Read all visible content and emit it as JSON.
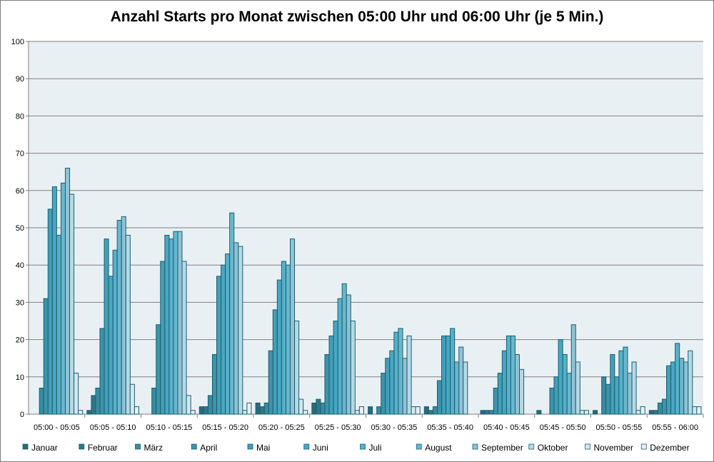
{
  "chart_data": {
    "type": "bar",
    "title": "Anzahl Starts pro Monat zwischen 05:00 Uhr und 06:00 Uhr (je 5 Min.)",
    "xlabel": "",
    "ylabel": "",
    "ylim": [
      0,
      100
    ],
    "yticks": [
      0,
      10,
      20,
      30,
      40,
      50,
      60,
      70,
      80,
      90,
      100
    ],
    "grid": true,
    "legend": "bottom",
    "categories": [
      "05:00 - 05:05",
      "05:05 - 05:10",
      "05:10 - 05:15",
      "05:15 - 05:20",
      "05:20 - 05:25",
      "05:25 - 05:30",
      "05:30 - 05:35",
      "05:35 - 05:40",
      "05:40 - 05:45",
      "05:45 - 05:50",
      "05:50 - 05:55",
      "05:55 - 06:00"
    ],
    "series": [
      {
        "name": "Januar",
        "color": "#2b6a7a",
        "values": [
          0,
          1,
          0,
          2,
          3,
          3,
          2,
          2,
          1,
          1,
          1,
          1
        ]
      },
      {
        "name": "Februar",
        "color": "#2e7889",
        "values": [
          0,
          5,
          0,
          2,
          2,
          4,
          0,
          1,
          1,
          0,
          0,
          1
        ]
      },
      {
        "name": "März",
        "color": "#3a8b9f",
        "values": [
          7,
          7,
          7,
          5,
          3,
          3,
          2,
          2,
          1,
          0,
          10,
          3
        ]
      },
      {
        "name": "April",
        "color": "#3c94aa",
        "values": [
          31,
          23,
          24,
          16,
          17,
          16,
          11,
          9,
          7,
          7,
          8,
          4
        ]
      },
      {
        "name": "Mai",
        "color": "#439fb8",
        "values": [
          55,
          47,
          41,
          37,
          28,
          21,
          15,
          21,
          11,
          10,
          16,
          13
        ]
      },
      {
        "name": "Juni",
        "color": "#48a7c2",
        "values": [
          61,
          37,
          48,
          40,
          36,
          25,
          17,
          21,
          17,
          20,
          10,
          14
        ]
      },
      {
        "name": "Juli",
        "color": "#56b0c9",
        "values": [
          48,
          44,
          47,
          43,
          41,
          31,
          22,
          23,
          21,
          16,
          17,
          19
        ]
      },
      {
        "name": "August",
        "color": "#68b7ce",
        "values": [
          62,
          52,
          49,
          54,
          40,
          35,
          23,
          14,
          21,
          11,
          18,
          15
        ]
      },
      {
        "name": "September",
        "color": "#8dc3d5",
        "values": [
          66,
          53,
          49,
          46,
          47,
          32,
          15,
          18,
          16,
          24,
          11,
          14
        ]
      },
      {
        "name": "Oktober",
        "color": "#b5d9e5",
        "values": [
          59,
          48,
          41,
          45,
          25,
          25,
          21,
          14,
          12,
          14,
          14,
          17
        ]
      },
      {
        "name": "November",
        "color": "#d3e8ef",
        "values": [
          11,
          8,
          5,
          1,
          4,
          1,
          2,
          0,
          0,
          1,
          1,
          2
        ]
      },
      {
        "name": "Dezember",
        "color": "#e8f2f6",
        "values": [
          1,
          2,
          1,
          3,
          1,
          2,
          2,
          0,
          0,
          1,
          2,
          2
        ]
      }
    ],
    "colors": {
      "plot_background": "#e9f0f4",
      "bar_border": "#1b5e70",
      "gridline": "#808080"
    }
  }
}
